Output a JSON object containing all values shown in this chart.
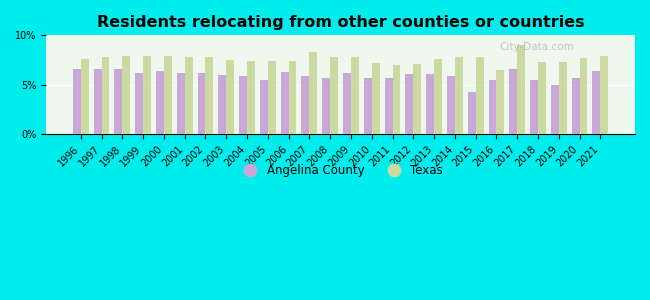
{
  "title": "Residents relocating from other counties or countries",
  "years": [
    1996,
    1997,
    1998,
    1999,
    2000,
    2001,
    2002,
    2003,
    2004,
    2005,
    2006,
    2007,
    2008,
    2009,
    2010,
    2011,
    2012,
    2013,
    2014,
    2015,
    2016,
    2017,
    2018,
    2019,
    2020,
    2021
  ],
  "angelina": [
    6.6,
    6.6,
    6.6,
    6.2,
    6.4,
    6.2,
    6.2,
    6.0,
    5.9,
    5.5,
    6.3,
    5.9,
    5.7,
    6.2,
    5.7,
    5.7,
    6.1,
    6.1,
    5.9,
    4.2,
    5.5,
    6.6,
    5.5,
    5.0,
    5.7,
    6.4
  ],
  "texas": [
    7.6,
    7.8,
    7.9,
    7.9,
    7.9,
    7.8,
    7.8,
    7.5,
    7.4,
    7.4,
    7.4,
    8.3,
    7.8,
    7.8,
    7.2,
    7.0,
    7.1,
    7.6,
    7.8,
    7.8,
    6.5,
    9.0,
    7.3,
    7.3,
    7.7,
    7.9
  ],
  "angelina_color": "#c9a8d8",
  "texas_color": "#ccd9a0",
  "plot_bg_color": "#eef8ee",
  "fig_bg_color": "#00eded",
  "ylim": [
    0,
    10
  ],
  "yticks": [
    0,
    5,
    10
  ],
  "ytick_labels": [
    "0%",
    "5%",
    "10%"
  ],
  "bar_width": 0.38,
  "legend_angelina": "Angelina County",
  "legend_texas": "Texas",
  "title_fontsize": 11.5,
  "tick_fontsize": 7
}
